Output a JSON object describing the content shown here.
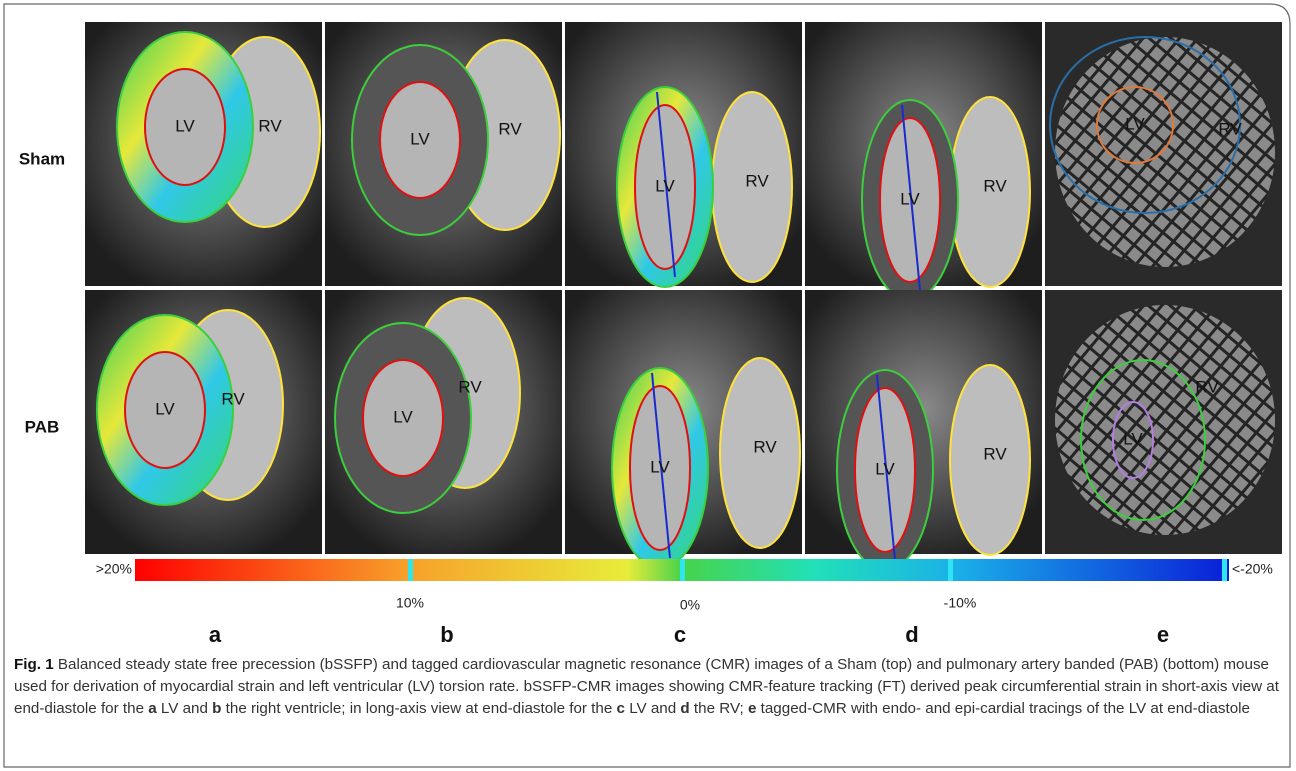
{
  "rows": [
    {
      "label": "Sham",
      "panels": [
        [
          "LV",
          "RV"
        ],
        [
          "LV",
          "RV"
        ],
        [
          "LV",
          "RV"
        ],
        [
          "LV",
          "RV"
        ],
        [
          "LV",
          "RV"
        ]
      ]
    },
    {
      "label": "PAB",
      "panels": [
        [
          "LV",
          "RV"
        ],
        [
          "LV",
          "RV"
        ],
        [
          "LV",
          "RV"
        ],
        [
          "LV",
          "RV"
        ],
        [
          "LV",
          "RV"
        ]
      ]
    }
  ],
  "colorbar": {
    "left": ">20%",
    "right": "<-20%",
    "ticks": [
      "10%",
      "0%",
      "-10%"
    ]
  },
  "panel_letters": [
    "a",
    "b",
    "c",
    "d",
    "e"
  ],
  "caption": {
    "label": "Fig. 1",
    "parts": [
      " Balanced steady state free precession (bSSFP) and tagged cardiovascular magnetic resonance (CMR) images of a Sham (top) and pulmonary artery banded (PAB) (bottom) mouse used for derivation of myocardial strain and left ventricular (LV) torsion rate. bSSFP-CMR images showing CMR-feature tracking (FT) derived peak circumferential strain in short-axis view at end-diastole for the ",
      "a",
      " LV and ",
      "b",
      " the right ventricle; in long-axis view at end-diastole for the ",
      "c",
      " LV and ",
      "d",
      " the RV; ",
      "e",
      " tagged-CMR with endo- and epi-cardial tracings of the LV at end-diastole"
    ]
  }
}
